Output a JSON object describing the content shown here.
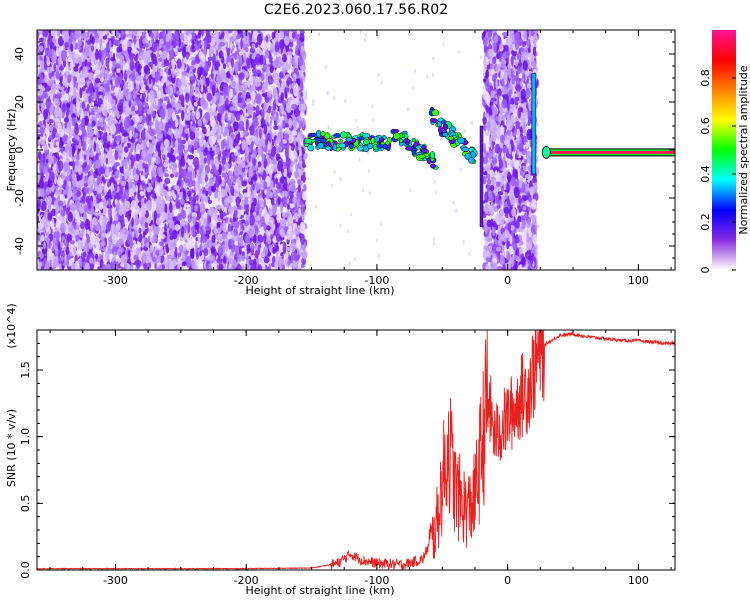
{
  "title": "C2E6.2023.060.17.56.R02",
  "chart_data": [
    {
      "type": "heatmap",
      "xlabel": "Height of straight line (km)",
      "ylabel": "Frequency (Hz)",
      "xlim": [
        -360,
        128
      ],
      "ylim": [
        -50,
        50
      ],
      "xticks": [
        -300,
        -200,
        -100,
        0,
        100
      ],
      "yticks": [
        -40,
        -20,
        0,
        20,
        40
      ],
      "colorbar": {
        "label": "Normalized spectral amplitude",
        "range": [
          0.0,
          1.0
        ],
        "ticks": [
          0.0,
          0.2,
          0.4,
          0.6,
          0.8
        ],
        "colormap": [
          "#ffffff",
          "#8a2be2",
          "#0000ff",
          "#00ffff",
          "#00ff00",
          "#ffff00",
          "#ff8000",
          "#ff0000",
          "#ff1493"
        ]
      },
      "regions": [
        {
          "x_range": [
            -360,
            -155
          ],
          "y_range": [
            -50,
            50
          ],
          "level": "low"
        },
        {
          "x_range": [
            -18,
            22
          ],
          "y_range": [
            -50,
            50
          ],
          "level": "low"
        }
      ],
      "bands": [
        {
          "x_range": [
            -155,
            -90
          ],
          "y_center": [
            4,
            3
          ],
          "level": "mid"
        },
        {
          "x_range": [
            -88,
            -55
          ],
          "y_center": [
            8,
            -5
          ],
          "level": "mid"
        },
        {
          "x_range": [
            -58,
            -25
          ],
          "y_center": [
            14,
            -3
          ],
          "level": "mid"
        },
        {
          "x_range": [
            28,
            128
          ],
          "y_center": [
            -1,
            -1
          ],
          "level": "high"
        }
      ]
    },
    {
      "type": "line",
      "xlabel": "Height of straight line (km)",
      "ylabel": "SNR (10 * v/v)",
      "y_multiplier": "(x10^4)",
      "xlim": [
        -360,
        128
      ],
      "ylim": [
        0,
        1.8
      ],
      "xticks": [
        -300,
        -200,
        -100,
        0,
        100
      ],
      "yticks": [
        0.0,
        0.5,
        1.0,
        1.5
      ],
      "color": "#e8201e",
      "series": [
        {
          "x": [
            -360,
            -300,
            -250,
            -200,
            -150,
            -130,
            -120,
            -115,
            -110,
            -100,
            -80,
            -65,
            -55,
            -50,
            -45,
            -40,
            -35,
            -30,
            -25,
            -20,
            -15,
            -10,
            -5,
            0,
            5,
            10,
            15,
            20,
            25,
            30,
            40,
            50,
            60,
            70,
            80,
            90,
            100,
            110,
            120,
            128
          ],
          "y": [
            0.01,
            0.01,
            0.01,
            0.01,
            0.015,
            0.05,
            0.12,
            0.09,
            0.07,
            0.05,
            0.04,
            0.08,
            0.3,
            0.65,
            0.95,
            0.6,
            0.5,
            0.45,
            0.55,
            0.9,
            1.3,
            1.0,
            1.05,
            1.15,
            1.2,
            1.3,
            1.35,
            1.5,
            1.65,
            1.7,
            1.76,
            1.77,
            1.75,
            1.74,
            1.73,
            1.72,
            1.72,
            1.71,
            1.7,
            1.7
          ]
        }
      ]
    }
  ]
}
